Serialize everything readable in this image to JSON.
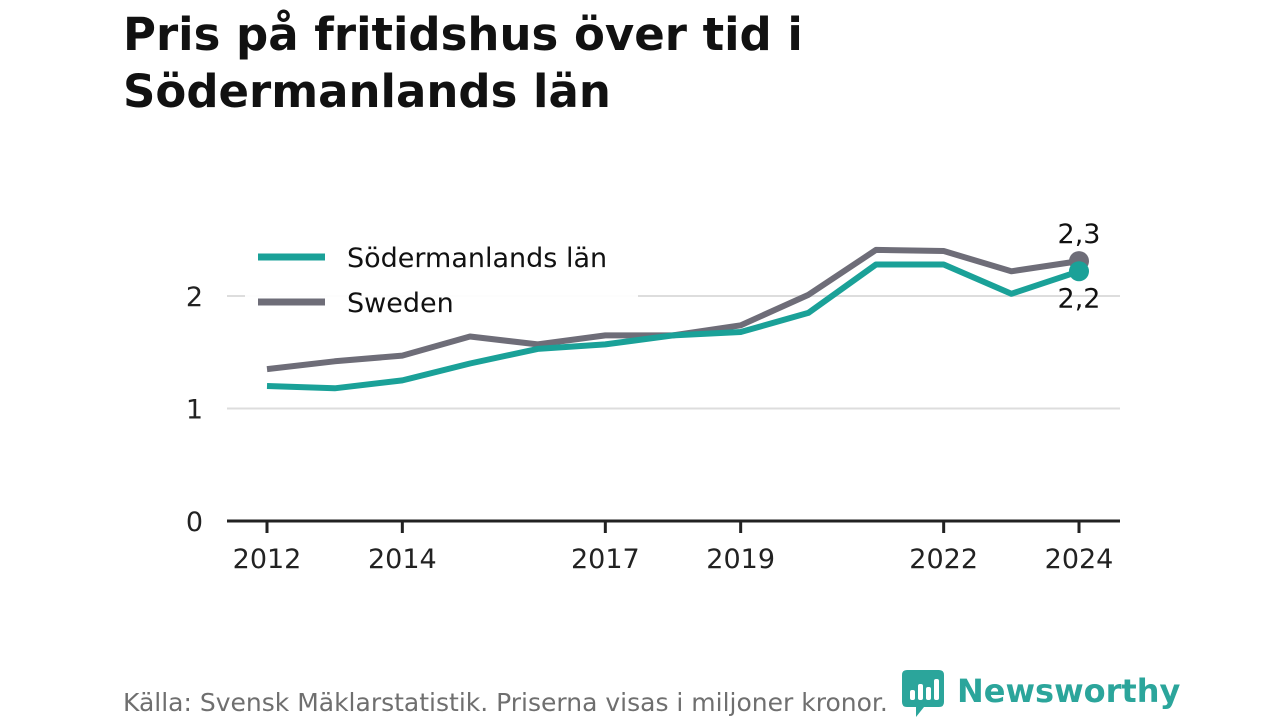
{
  "header": {
    "title": "Pris på fritidshus över tid i Södermanlands län"
  },
  "chart_data": {
    "type": "line",
    "title": "Pris på fritidshus över tid i Södermanlands län",
    "x": [
      2012,
      2013,
      2014,
      2015,
      2016,
      2017,
      2018,
      2019,
      2020,
      2021,
      2022,
      2023,
      2024
    ],
    "x_ticks": [
      "2012",
      "2014",
      "2017",
      "2019",
      "2022",
      "2024"
    ],
    "y_ticks": [
      "0",
      "1",
      "2"
    ],
    "ylim": [
      0,
      2.45
    ],
    "xlim": [
      2012,
      2024
    ],
    "grid": true,
    "legend_placement": "top-left",
    "series": [
      {
        "name": "Södermanlands län",
        "color": "#1aa198",
        "values": [
          1.2,
          1.18,
          1.25,
          1.4,
          1.53,
          1.57,
          1.65,
          1.68,
          1.85,
          2.28,
          2.28,
          2.02,
          2.22
        ],
        "end_label": "2,2"
      },
      {
        "name": "Sweden",
        "color": "#6e6d78",
        "values": [
          1.35,
          1.42,
          1.47,
          1.64,
          1.57,
          1.65,
          1.65,
          1.74,
          2.01,
          2.41,
          2.4,
          2.22,
          2.31
        ],
        "end_label": "2,3"
      }
    ]
  },
  "footer": {
    "source": "Källa: Svensk Mäklarstatistik. Priserna visas i miljoner kronor.",
    "brand": "Newsworthy",
    "brand_icon": "bar-chart-speech-bubble-icon",
    "brand_color": "#2ba59b"
  }
}
